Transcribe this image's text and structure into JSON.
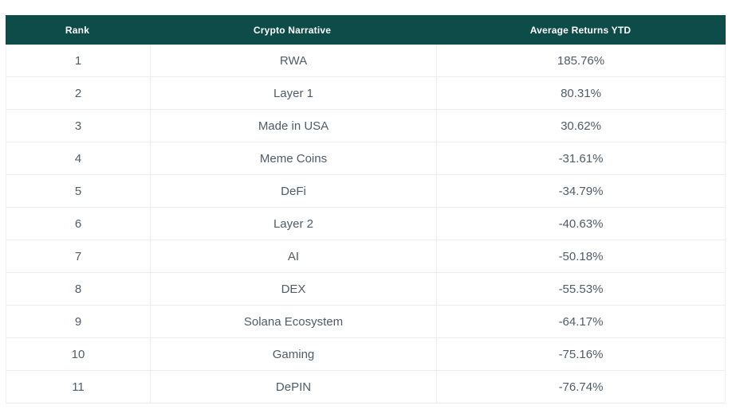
{
  "table": {
    "columns": [
      "Rank",
      "Crypto Narrative",
      "Average Returns YTD"
    ],
    "rows": [
      {
        "rank": "1",
        "narrative": "RWA",
        "returns": "185.76%"
      },
      {
        "rank": "2",
        "narrative": "Layer 1",
        "returns": "80.31%"
      },
      {
        "rank": "3",
        "narrative": "Made in USA",
        "returns": "30.62%"
      },
      {
        "rank": "4",
        "narrative": "Meme Coins",
        "returns": "-31.61%"
      },
      {
        "rank": "5",
        "narrative": "DeFi",
        "returns": "-34.79%"
      },
      {
        "rank": "6",
        "narrative": "Layer 2",
        "returns": "-40.63%"
      },
      {
        "rank": "7",
        "narrative": "AI",
        "returns": "-50.18%"
      },
      {
        "rank": "8",
        "narrative": "DEX",
        "returns": "-55.53%"
      },
      {
        "rank": "9",
        "narrative": "Solana Ecosystem",
        "returns": "-64.17%"
      },
      {
        "rank": "10",
        "narrative": "Gaming",
        "returns": "-75.16%"
      },
      {
        "rank": "11",
        "narrative": "DePIN",
        "returns": "-76.74%"
      }
    ]
  },
  "colors": {
    "header_bg": "#0e4c49",
    "header_text": "#ffffff",
    "body_text": "#4f5b67",
    "border": "#ecedf1"
  },
  "chart_data": {
    "type": "table",
    "columns": [
      "Rank",
      "Crypto Narrative",
      "Average Returns YTD"
    ],
    "rows": [
      [
        1,
        "RWA",
        "185.76%"
      ],
      [
        2,
        "Layer 1",
        "80.31%"
      ],
      [
        3,
        "Made in USA",
        "30.62%"
      ],
      [
        4,
        "Meme Coins",
        "-31.61%"
      ],
      [
        5,
        "DeFi",
        "-34.79%"
      ],
      [
        6,
        "Layer 2",
        "-40.63%"
      ],
      [
        7,
        "AI",
        "-50.18%"
      ],
      [
        8,
        "DEX",
        "-55.53%"
      ],
      [
        9,
        "Solana Ecosystem",
        "-64.17%"
      ],
      [
        10,
        "Gaming",
        "-75.16%"
      ],
      [
        11,
        "DePIN",
        "-76.74%"
      ]
    ],
    "returns_numeric": [
      185.76,
      80.31,
      30.62,
      -31.61,
      -34.79,
      -40.63,
      -50.18,
      -55.53,
      -64.17,
      -75.16,
      -76.74
    ]
  }
}
